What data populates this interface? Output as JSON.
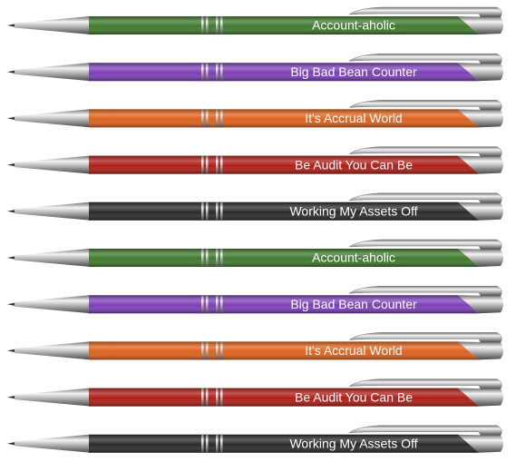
{
  "pens": [
    {
      "label": "Account-aholic",
      "color": "#3f7a2c"
    },
    {
      "label": "Big Bad Bean Counter",
      "color": "#7d3fb8"
    },
    {
      "label": "It's Accrual World",
      "color": "#e0621a"
    },
    {
      "label": "Be Audit You Can Be",
      "color": "#b01c14"
    },
    {
      "label": "Working My Assets Off",
      "color": "#2a2a2a"
    },
    {
      "label": "Account-aholic",
      "color": "#3f7a2c"
    },
    {
      "label": "Big Bad Bean Counter",
      "color": "#7d3fb8"
    },
    {
      "label": "It's Accrual World",
      "color": "#e0621a"
    },
    {
      "label": "Be Audit You Can Be",
      "color": "#b01c14"
    },
    {
      "label": "Working My Assets Off",
      "color": "#2a2a2a"
    }
  ]
}
